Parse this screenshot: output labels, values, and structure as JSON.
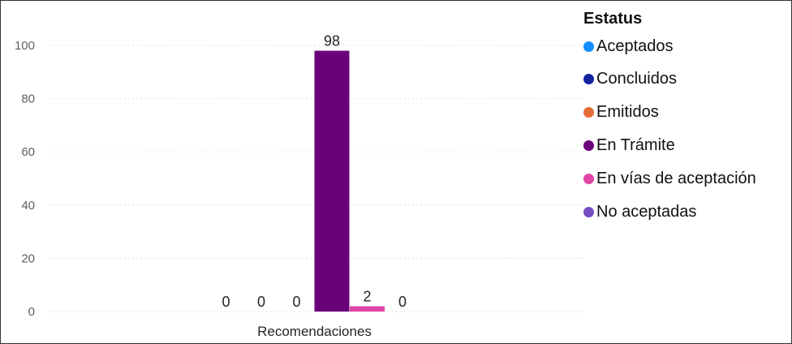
{
  "chart_data": {
    "type": "bar",
    "categories": [
      "Recomendaciones"
    ],
    "series": [
      {
        "name": "Aceptados",
        "values": [
          0
        ],
        "color": "#118DFF"
      },
      {
        "name": "Concluidos",
        "values": [
          0
        ],
        "color": "#12239E"
      },
      {
        "name": "Emitidos",
        "values": [
          0
        ],
        "color": "#E66C37"
      },
      {
        "name": "En Trámite",
        "values": [
          98
        ],
        "color": "#6B007B"
      },
      {
        "name": "En vías de aceptación",
        "values": [
          2
        ],
        "color": "#E044A7"
      },
      {
        "name": "No aceptadas",
        "values": [
          0
        ],
        "color": "#744EC2"
      }
    ],
    "yticks": [
      0,
      20,
      40,
      60,
      80,
      100
    ],
    "ylim": [
      0,
      100
    ],
    "grid": true,
    "legend": {
      "title": "Estatus",
      "position": "right"
    }
  }
}
